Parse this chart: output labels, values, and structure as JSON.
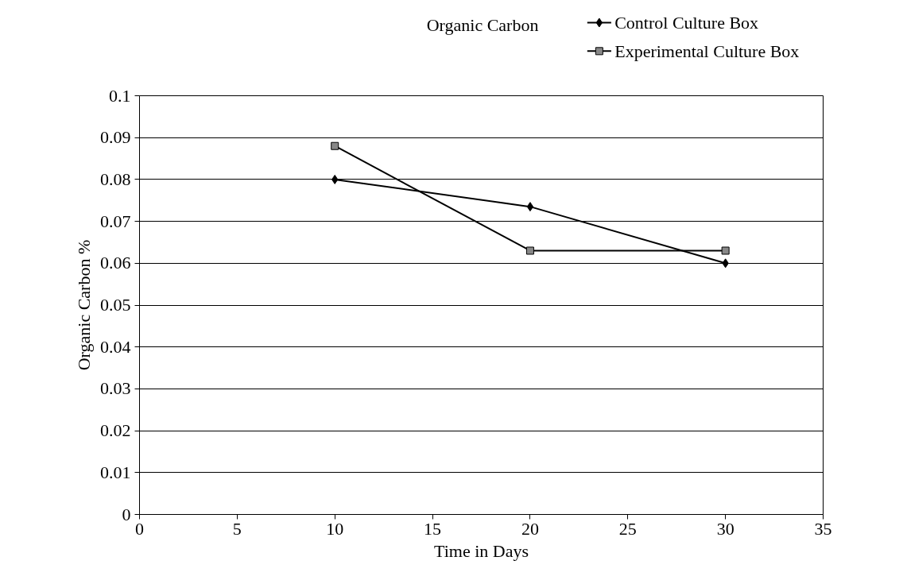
{
  "chart_data": {
    "type": "line",
    "title": "Organic Carbon",
    "xlabel": "Time in Days",
    "ylabel": "Organic Carbon %",
    "x": [
      10,
      20,
      30
    ],
    "series": [
      {
        "name": "Control Culture Box",
        "color": "#000000",
        "values": [
          0.08,
          0.0735,
          0.06
        ],
        "marker": "diamond"
      },
      {
        "name": "Experimental Culture Box",
        "color": "#000000",
        "values": [
          0.088,
          0.063,
          0.063
        ],
        "marker": "square"
      }
    ],
    "xlim": [
      0,
      35
    ],
    "xticks": [
      0,
      5,
      10,
      15,
      20,
      25,
      30,
      35
    ],
    "ylim": [
      0,
      0.1
    ],
    "yticks": [
      0,
      0.01,
      0.02,
      0.03,
      0.04,
      0.05,
      0.06,
      0.07,
      0.08,
      0.09,
      0.1
    ],
    "grid": "y",
    "legend": "top right",
    "line_style": "solid"
  }
}
